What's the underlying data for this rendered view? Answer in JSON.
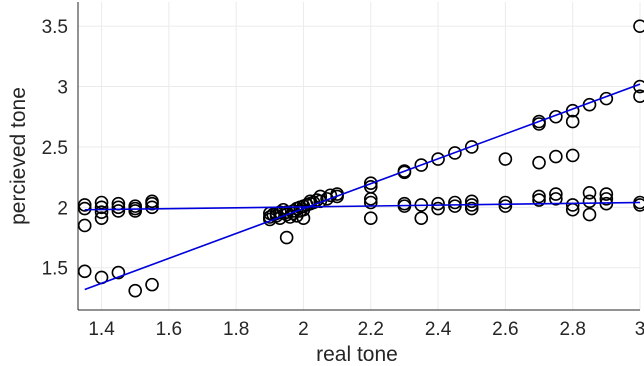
{
  "chart_data": {
    "type": "scatter",
    "title": "",
    "xlabel": "real tone",
    "ylabel": "percieved tone",
    "xlim": [
      1.33,
      3.0
    ],
    "ylim": [
      1.15,
      3.7
    ],
    "x_ticks": [
      1.4,
      1.6,
      1.8,
      2,
      2.2,
      2.4,
      2.6,
      2.8,
      3
    ],
    "x_tick_labels": [
      "1.4",
      "1.6",
      "1.8",
      "2",
      "2.2",
      "2.4",
      "2.6",
      "2.8",
      "3"
    ],
    "y_ticks": [
      1.5,
      2,
      2.5,
      3,
      3.5
    ],
    "y_tick_labels": [
      "1.5",
      "2",
      "2.5",
      "3",
      "3.5"
    ],
    "grid": true,
    "marker": "open-circle",
    "marker_color": "#000000",
    "line_color": "#0000dd",
    "series": [
      {
        "points": [
          [
            1.35,
            2.02
          ],
          [
            1.35,
            1.99
          ],
          [
            1.35,
            1.85
          ],
          [
            1.35,
            1.47
          ],
          [
            1.4,
            2.04
          ],
          [
            1.4,
            2.0
          ],
          [
            1.4,
            1.96
          ],
          [
            1.4,
            1.91
          ],
          [
            1.4,
            1.42
          ],
          [
            1.45,
            2.03
          ],
          [
            1.45,
            2.0
          ],
          [
            1.45,
            1.97
          ],
          [
            1.45,
            1.46
          ],
          [
            1.5,
            2.01
          ],
          [
            1.5,
            1.97
          ],
          [
            1.5,
            1.99
          ],
          [
            1.5,
            1.31
          ],
          [
            1.55,
            2.05
          ],
          [
            1.55,
            2.03
          ],
          [
            1.55,
            2.0
          ],
          [
            1.55,
            1.36
          ],
          [
            1.9,
            1.95
          ],
          [
            1.9,
            1.92
          ],
          [
            1.9,
            1.9
          ],
          [
            1.91,
            1.94
          ],
          [
            1.92,
            1.93
          ],
          [
            1.92,
            1.95
          ],
          [
            1.93,
            1.96
          ],
          [
            1.93,
            1.91
          ],
          [
            1.94,
            1.98
          ],
          [
            1.95,
            1.96
          ],
          [
            1.95,
            1.94
          ],
          [
            1.95,
            1.75
          ],
          [
            1.96,
            1.92
          ],
          [
            1.97,
            1.97
          ],
          [
            1.97,
            1.95
          ],
          [
            1.98,
            1.99
          ],
          [
            1.98,
            1.93
          ],
          [
            1.99,
            2.0
          ],
          [
            1.99,
            1.97
          ],
          [
            2.0,
            2.01
          ],
          [
            2.0,
            1.98
          ],
          [
            2.0,
            1.91
          ],
          [
            2.01,
            2.02
          ],
          [
            2.02,
            2.03
          ],
          [
            2.02,
            2.05
          ],
          [
            2.03,
            2.04
          ],
          [
            2.04,
            2.06
          ],
          [
            2.05,
            2.09
          ],
          [
            2.05,
            2.05
          ],
          [
            2.07,
            2.07
          ],
          [
            2.08,
            2.1
          ],
          [
            2.1,
            2.11
          ],
          [
            2.1,
            2.09
          ],
          [
            2.2,
            2.2
          ],
          [
            2.2,
            2.17
          ],
          [
            2.2,
            2.07
          ],
          [
            2.2,
            2.04
          ],
          [
            2.2,
            1.91
          ],
          [
            2.3,
            2.3
          ],
          [
            2.3,
            2.29
          ],
          [
            2.3,
            2.03
          ],
          [
            2.3,
            2.01
          ],
          [
            2.35,
            2.35
          ],
          [
            2.35,
            2.02
          ],
          [
            2.35,
            1.91
          ],
          [
            2.4,
            2.4
          ],
          [
            2.4,
            2.03
          ],
          [
            2.4,
            1.99
          ],
          [
            2.45,
            2.45
          ],
          [
            2.45,
            2.04
          ],
          [
            2.45,
            2.01
          ],
          [
            2.5,
            2.5
          ],
          [
            2.5,
            2.05
          ],
          [
            2.5,
            2.02
          ],
          [
            2.5,
            1.99
          ],
          [
            2.6,
            2.4
          ],
          [
            2.6,
            2.04
          ],
          [
            2.6,
            2.01
          ],
          [
            2.7,
            2.71
          ],
          [
            2.7,
            2.69
          ],
          [
            2.7,
            2.37
          ],
          [
            2.7,
            2.09
          ],
          [
            2.7,
            2.06
          ],
          [
            2.75,
            2.75
          ],
          [
            2.75,
            2.42
          ],
          [
            2.75,
            2.11
          ],
          [
            2.75,
            2.07
          ],
          [
            2.8,
            2.8
          ],
          [
            2.8,
            2.71
          ],
          [
            2.8,
            2.43
          ],
          [
            2.8,
            2.02
          ],
          [
            2.8,
            1.98
          ],
          [
            2.85,
            2.85
          ],
          [
            2.85,
            2.12
          ],
          [
            2.85,
            2.05
          ],
          [
            2.85,
            1.94
          ],
          [
            2.9,
            2.9
          ],
          [
            2.9,
            2.11
          ],
          [
            2.9,
            2.07
          ],
          [
            2.9,
            2.03
          ],
          [
            3.0,
            3.5
          ],
          [
            3.0,
            3.0
          ],
          [
            3.0,
            2.92
          ],
          [
            3.0,
            2.04
          ],
          [
            3.0,
            2.02
          ]
        ]
      }
    ],
    "fit_lines": [
      {
        "x": [
          1.35,
          3.0
        ],
        "y": [
          1.32,
          3.02
        ]
      },
      {
        "x": [
          1.35,
          3.0
        ],
        "y": [
          1.98,
          2.04
        ]
      }
    ]
  }
}
